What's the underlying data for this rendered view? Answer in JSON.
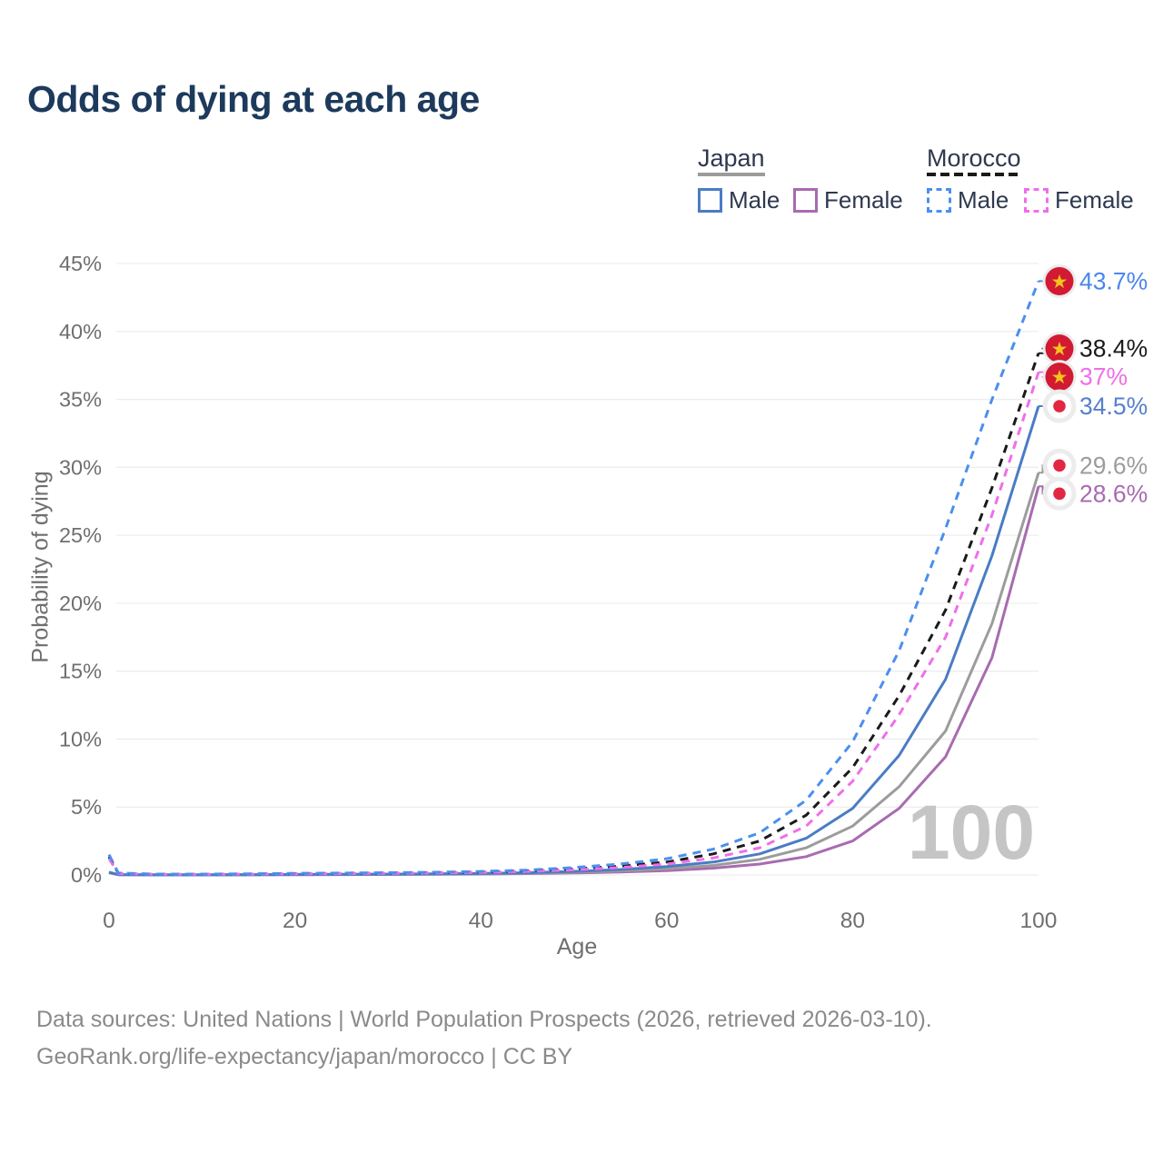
{
  "title": "Odds of dying at each age",
  "legend": {
    "groups": [
      {
        "country": "Japan",
        "line_style": "solid",
        "line_color": "#9c9c9c",
        "items": [
          {
            "label": "Male",
            "color": "#4a7cc4"
          },
          {
            "label": "Female",
            "color": "#a86bb0"
          }
        ]
      },
      {
        "country": "Morocco",
        "line_style": "dashed",
        "line_color": "#1a1a1a",
        "items": [
          {
            "label": "Male",
            "color": "#4a8ff0"
          },
          {
            "label": "Female",
            "color": "#f06ee9"
          }
        ]
      }
    ]
  },
  "chart_data": {
    "type": "line",
    "title": "Odds of dying at each age",
    "xlabel": "Age",
    "ylabel": "Probability of dying",
    "xlim": [
      0,
      100
    ],
    "ylim_percent": [
      0,
      45
    ],
    "x_ticks": [
      0,
      20,
      40,
      60,
      80,
      100
    ],
    "y_ticks_percent": [
      0,
      5,
      10,
      15,
      20,
      25,
      30,
      35,
      40,
      45
    ],
    "grid": "horizontal",
    "legend_position": "top-right",
    "watermark": "100",
    "ages": [
      0,
      1,
      5,
      10,
      15,
      20,
      25,
      30,
      35,
      40,
      45,
      50,
      55,
      60,
      65,
      70,
      75,
      80,
      85,
      90,
      95,
      100
    ],
    "series": [
      {
        "name": "Japan Female",
        "country": "Japan",
        "sex": "Female",
        "style": "solid",
        "color": "#a86bb0",
        "end_label": "28.6%",
        "label_color": "#a86bb0",
        "flag": "japan",
        "values_percent": [
          0.16,
          0.02,
          0.01,
          0.01,
          0.015,
          0.02,
          0.03,
          0.04,
          0.05,
          0.07,
          0.1,
          0.15,
          0.22,
          0.32,
          0.5,
          0.8,
          1.35,
          2.5,
          4.9,
          8.7,
          16,
          28.6
        ]
      },
      {
        "name": "Japan Total",
        "country": "Japan",
        "sex": "Both",
        "style": "solid",
        "color": "#9c9c9c",
        "end_label": "29.6%",
        "label_color": "#9c9c9c",
        "flag": "japan",
        "values_percent": [
          0.18,
          0.025,
          0.01,
          0.01,
          0.02,
          0.03,
          0.04,
          0.05,
          0.06,
          0.09,
          0.13,
          0.2,
          0.3,
          0.46,
          0.7,
          1.15,
          2.0,
          3.6,
          6.5,
          10.6,
          18.5,
          29.6
        ]
      },
      {
        "name": "Japan Male",
        "country": "Japan",
        "sex": "Male",
        "style": "solid",
        "color": "#4a7cc4",
        "end_label": "34.5%",
        "label_color": "#567fcd",
        "flag": "japan",
        "values_percent": [
          0.2,
          0.03,
          0.01,
          0.01,
          0.02,
          0.04,
          0.05,
          0.06,
          0.08,
          0.11,
          0.17,
          0.26,
          0.4,
          0.62,
          0.95,
          1.55,
          2.7,
          4.9,
          8.8,
          14.4,
          23.5,
          34.5
        ]
      },
      {
        "name": "Morocco Total",
        "country": "Morocco",
        "sex": "Both",
        "style": "dashed",
        "color": "#1a1a1a",
        "end_label": "38.4%",
        "label_color": "#1a1a1a",
        "flag": "morocco",
        "values_percent": [
          1.35,
          0.12,
          0.05,
          0.05,
          0.07,
          0.1,
          0.12,
          0.14,
          0.17,
          0.22,
          0.3,
          0.45,
          0.65,
          0.95,
          1.55,
          2.5,
          4.4,
          7.9,
          13.2,
          19.5,
          28.5,
          38.4
        ]
      },
      {
        "name": "Morocco Female",
        "country": "Morocco",
        "sex": "Female",
        "style": "dashed",
        "color": "#f06ee9",
        "end_label": "37%",
        "label_color": "#f06ee9",
        "flag": "morocco",
        "values_percent": [
          1.2,
          0.1,
          0.05,
          0.04,
          0.06,
          0.08,
          0.1,
          0.12,
          0.15,
          0.19,
          0.26,
          0.38,
          0.55,
          0.8,
          1.25,
          2.0,
          3.6,
          6.9,
          11.8,
          17.5,
          26.5,
          37
        ]
      },
      {
        "name": "Morocco Male",
        "country": "Morocco",
        "sex": "Male",
        "style": "dashed",
        "color": "#4a8ff0",
        "end_label": "43.7%",
        "label_color": "#4a86ec",
        "flag": "morocco",
        "values_percent": [
          1.5,
          0.15,
          0.06,
          0.06,
          0.09,
          0.12,
          0.14,
          0.17,
          0.2,
          0.26,
          0.36,
          0.55,
          0.8,
          1.2,
          1.9,
          3.1,
          5.5,
          9.8,
          16.5,
          25.5,
          35,
          43.7
        ]
      }
    ]
  },
  "footer": {
    "line1": "Data sources: United Nations | World Population Prospects (2026, retrieved 2026-03-10).",
    "line2": "GeoRank.org/life-expectancy/japan/morocco | CC BY"
  },
  "colors": {
    "title": "#1d3a5c",
    "tick": "#6f6f6f",
    "grid": "#ededed",
    "footer": "#8a8a8a",
    "legend_text": "#2e3950",
    "watermark": "#c5c5c5",
    "flag_halo": "#ececec",
    "morocco_red": "#d21a33",
    "morocco_star": "#f2c41d",
    "japan_red": "#e22742",
    "japan_white": "#ffffff"
  }
}
